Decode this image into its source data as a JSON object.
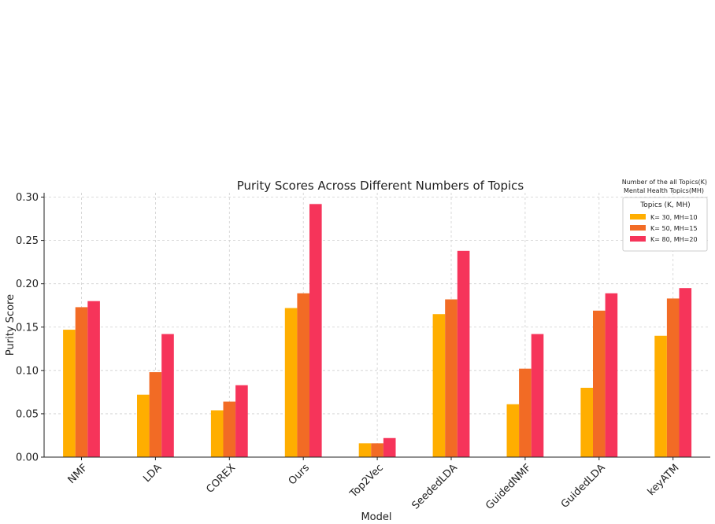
{
  "chart_data": {
    "type": "bar",
    "title": "Purity Scores Across Different Numbers of Topics",
    "xlabel": "Model",
    "ylabel": "Purity Score",
    "ylim": [
      0,
      0.305
    ],
    "yticks": [
      "0.00",
      "0.05",
      "0.10",
      "0.15",
      "0.20",
      "0.25",
      "0.30"
    ],
    "grid": true,
    "legend_placement": "top-right",
    "legend_heading": [
      "Number of the all Topics(K)",
      "Mental Health Topics(MH)"
    ],
    "legend_title": "Topics (K, MH)",
    "categories": [
      "NMF",
      "LDA",
      "COREX",
      "Ours",
      "Top2Vec",
      "SeededLDA",
      "GuidedNMF",
      "GuidedLDA",
      "keyATM"
    ],
    "series": [
      {
        "name": "K= 30, MH=10",
        "color": "#FFAE00",
        "values": [
          0.147,
          0.072,
          0.054,
          0.172,
          0.016,
          0.165,
          0.061,
          0.08,
          0.14
        ]
      },
      {
        "name": "K= 50, MH=15",
        "color": "#F26B25",
        "values": [
          0.173,
          0.098,
          0.064,
          0.189,
          0.016,
          0.182,
          0.102,
          0.169,
          0.183
        ]
      },
      {
        "name": "K= 80, MH=20",
        "color": "#F6345A",
        "values": [
          0.18,
          0.142,
          0.083,
          0.292,
          0.022,
          0.238,
          0.142,
          0.189,
          0.195
        ]
      }
    ]
  }
}
